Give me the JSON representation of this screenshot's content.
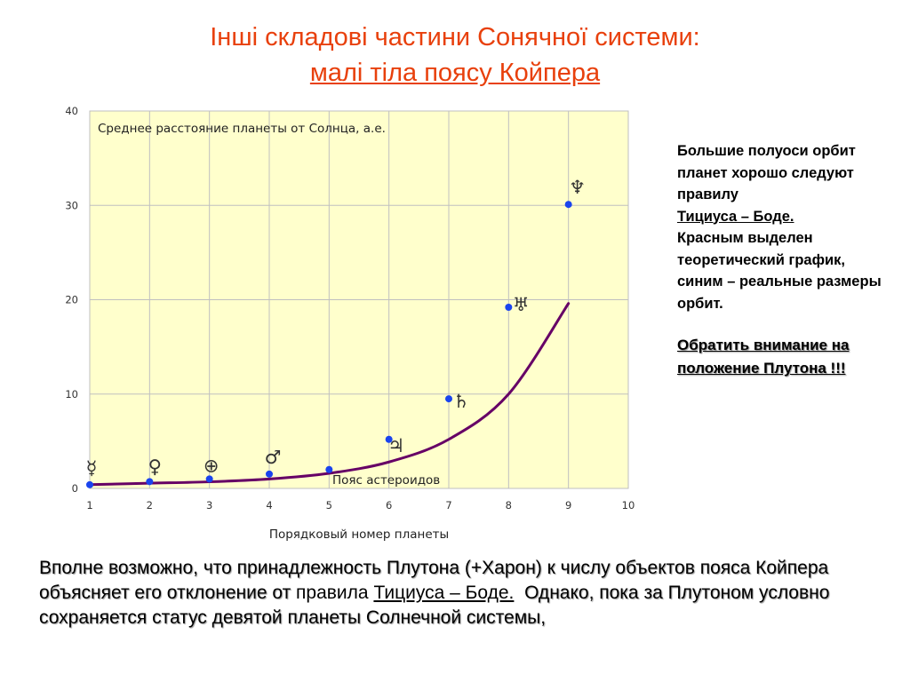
{
  "title": {
    "line1": "Інші складові частини Сонячної системи:",
    "line2": "малі тіла поясу Койпера"
  },
  "side_text": {
    "part1": "Большие полуоси орбит планет хорошо следуют правилу",
    "link": "Тициуса – Боде.",
    "part2": "Красным выделен теоретический график, синим – реальные размеры орбит.",
    "emphasis": "Обратить внимание на положение Плутона !!!"
  },
  "bottom_text": {
    "part1": "Вполне возможно, что принадлежность Плутона (+Харон) к числу объектов пояса Койпера объясняет его отклонение от",
    "part2": "правила",
    "link": "Тициуса – Боде.",
    "part3": "Однако, пока за Плутоном условно сохраняется статус девятой планеты Солнечной системы,"
  },
  "chart_data": {
    "type": "line",
    "title": "Среднее расстояние планеты от Солнца, а.е.",
    "xlabel": "Порядковый номер планеты",
    "ylabel": "",
    "xlim": [
      1,
      10
    ],
    "ylim": [
      0,
      40
    ],
    "xticks": [
      1,
      2,
      3,
      4,
      5,
      6,
      7,
      8,
      9,
      10
    ],
    "yticks": [
      0,
      10,
      20,
      30,
      40
    ],
    "grid": true,
    "annotation": "Пояс астероидов",
    "series": [
      {
        "kind": "theoretical curve",
        "color": "#660066",
        "x": [
          1,
          2,
          3,
          4,
          5,
          6,
          7,
          8,
          9
        ],
        "y": [
          0.4,
          0.55,
          0.7,
          1.0,
          1.6,
          2.8,
          5.2,
          10.0,
          19.6
        ]
      },
      {
        "kind": "actual orbits",
        "color": "#1a44ee",
        "x": [
          1,
          2,
          3,
          4,
          5,
          6,
          7,
          8,
          9
        ],
        "y": [
          0.39,
          0.72,
          1.0,
          1.52,
          2.0,
          5.2,
          9.5,
          19.2,
          30.1
        ]
      }
    ],
    "point_symbols": [
      "☿",
      "♀",
      "⊕",
      "♂",
      "",
      "♃",
      "♄",
      "♅",
      "♆"
    ],
    "colors": {
      "plot_background": "#ffffcc",
      "grid": "#c0c0c0",
      "title_accent": "#e8400c"
    }
  }
}
